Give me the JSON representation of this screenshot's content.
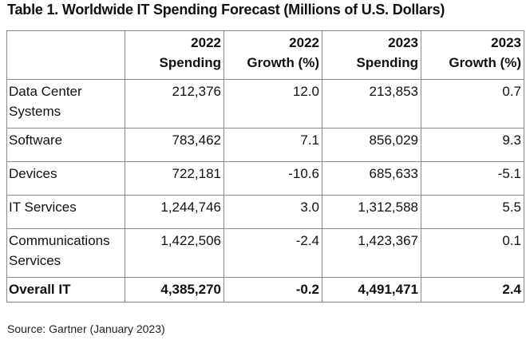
{
  "title": "Table 1. Worldwide IT Spending Forecast (Millions of U.S. Dollars)",
  "columns": [
    {
      "line1": "",
      "line2": ""
    },
    {
      "line1": "2022",
      "line2": "Spending"
    },
    {
      "line1": "2022",
      "line2": "Growth (%)"
    },
    {
      "line1": "2023",
      "line2": "Spending"
    },
    {
      "line1": "2023",
      "line2": "Growth (%)"
    }
  ],
  "rows": [
    {
      "label": "Data Center Systems",
      "v1": "212,376",
      "v2": "12.0",
      "v3": "213,853",
      "v4": "0.7"
    },
    {
      "label": "Software",
      "v1": "783,462",
      "v2": "7.1",
      "v3": "856,029",
      "v4": "9.3"
    },
    {
      "label": "Devices",
      "v1": "722,181",
      "v2": "-10.6",
      "v3": "685,633",
      "v4": "-5.1"
    },
    {
      "label": "IT Services",
      "v1": "1,244,746",
      "v2": "3.0",
      "v3": "1,312,588",
      "v4": "5.5"
    },
    {
      "label": "Communications Services",
      "v1": "1,422,506",
      "v2": "-2.4",
      "v3": "1,423,367",
      "v4": "0.1"
    }
  ],
  "total": {
    "label": "Overall IT",
    "v1": "4,385,270",
    "v2": "-0.2",
    "v3": "4,491,471",
    "v4": "2.4"
  },
  "source": "Source: Gartner (January 2023)"
}
